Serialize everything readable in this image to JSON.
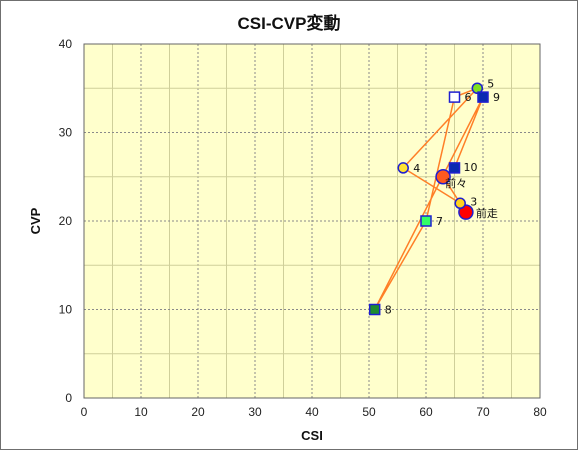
{
  "chart_data": {
    "type": "scatter",
    "title": "CSI-CVP変動",
    "xlabel": "CSI",
    "ylabel": "CVP",
    "xlim": [
      0,
      80
    ],
    "ylim": [
      0,
      40
    ],
    "x_ticks": [
      0,
      10,
      20,
      30,
      40,
      50,
      60,
      70,
      80
    ],
    "y_ticks": [
      0,
      10,
      20,
      30,
      40
    ],
    "x_minor_step": 5,
    "y_minor_step": 5,
    "grid": true,
    "plot_background": "#ffffcc",
    "line_color": "#ff7f27",
    "points": [
      {
        "label": "前走",
        "x": 67,
        "y": 21,
        "shape": "circle",
        "size": "large",
        "fill": "#ff0000",
        "stroke": "#1f1fd0"
      },
      {
        "label": "前々",
        "x": 63,
        "y": 25,
        "shape": "circle",
        "size": "large",
        "fill": "#ff5a1f",
        "stroke": "#1f1fd0"
      },
      {
        "label": "3",
        "x": 66,
        "y": 22,
        "shape": "circle",
        "size": "small",
        "fill": "#ffd21f",
        "stroke": "#1f1fd0"
      },
      {
        "label": "4",
        "x": 56,
        "y": 26,
        "shape": "circle",
        "size": "small",
        "fill": "#ffe233",
        "stroke": "#1f1fd0"
      },
      {
        "label": "5",
        "x": 69,
        "y": 35,
        "shape": "circle",
        "size": "small",
        "fill": "#80e020",
        "stroke": "#1f1fd0"
      },
      {
        "label": "6",
        "x": 65,
        "y": 34,
        "shape": "square",
        "size": "small",
        "fill": "#ffffff",
        "stroke": "#1f1fd0"
      },
      {
        "label": "7",
        "x": 60,
        "y": 20,
        "shape": "square",
        "size": "small",
        "fill": "#33ff66",
        "stroke": "#1f1fd0"
      },
      {
        "label": "8",
        "x": 51,
        "y": 10,
        "shape": "square",
        "size": "small",
        "fill": "#1f8c2f",
        "stroke": "#1f1fd0"
      },
      {
        "label": "9",
        "x": 70,
        "y": 34,
        "shape": "square",
        "size": "small",
        "fill": "#0a2ab0",
        "stroke": "#1f1fd0"
      },
      {
        "label": "10",
        "x": 65,
        "y": 26,
        "shape": "square",
        "size": "small",
        "fill": "#0a2ab0",
        "stroke": "#1f1fd0"
      }
    ]
  }
}
